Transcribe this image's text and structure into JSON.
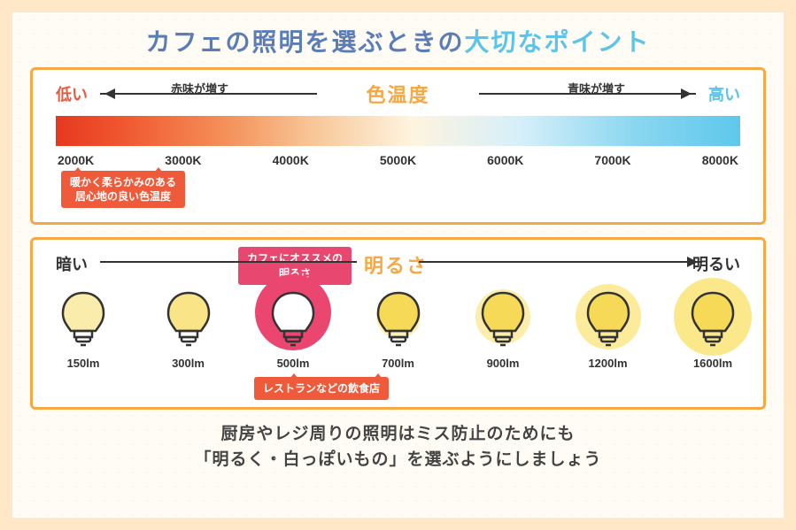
{
  "title": {
    "part1": "カフェの照明を選ぶときの",
    "part2": "大切なポイント"
  },
  "colorTemp": {
    "title": "色温度",
    "low": "低い",
    "high": "高い",
    "redLabel": "赤味が増す",
    "blueLabel": "青味が増す",
    "ticks": [
      "2000K",
      "3000K",
      "4000K",
      "5000K",
      "6000K",
      "7000K",
      "8000K"
    ],
    "gradient": [
      "#e63820",
      "#f05830",
      "#f4915a",
      "#f8c89a",
      "#fef4df",
      "#d5effa",
      "#89d6f0",
      "#5ec8ec"
    ],
    "callout1_l1": "暖かく柔らかみのある",
    "callout1_l2": "居心地の良い色温度"
  },
  "brightness": {
    "title": "明るさ",
    "dark": "暗い",
    "bright": "明るい",
    "cafeCallout_l1": "カフェにオススメの",
    "cafeCallout_l2": "明るさ",
    "restCallout": "レストランなどの飲食店",
    "bulbs": [
      {
        "label": "150lm",
        "fill": "#f6d956",
        "fillOpacity": 0.5,
        "glowSize": 0,
        "glowColor": "#fff",
        "highlight": false
      },
      {
        "label": "300lm",
        "fill": "#f6d956",
        "fillOpacity": 0.7,
        "glowSize": 0,
        "glowColor": "#fff",
        "highlight": false
      },
      {
        "label": "500lm",
        "fill": "#ffffff",
        "fillOpacity": 1,
        "glowSize": 0,
        "glowColor": "#fff",
        "highlight": true
      },
      {
        "label": "700lm",
        "fill": "#f6d956",
        "fillOpacity": 1,
        "glowSize": 50,
        "glowColor": "rgba(250,224,100,.45)",
        "highlight": false
      },
      {
        "label": "900lm",
        "fill": "#f6d956",
        "fillOpacity": 1,
        "glowSize": 62,
        "glowColor": "rgba(250,224,100,.55)",
        "highlight": false
      },
      {
        "label": "1200lm",
        "fill": "#f6d956",
        "fillOpacity": 1,
        "glowSize": 74,
        "glowColor": "rgba(250,224,100,.65)",
        "highlight": false
      },
      {
        "label": "1600lm",
        "fill": "#f6d956",
        "fillOpacity": 1,
        "glowSize": 88,
        "glowColor": "rgba(250,224,100,.75)",
        "highlight": false
      }
    ]
  },
  "footer": {
    "l1": "厨房やレジ周りの照明はミス防止のためにも",
    "l2": "「明るく・白っぽいもの」を選ぶようにしましょう"
  },
  "colors": {
    "frameBorder": "#f5a843",
    "pageBg": "#ffe7c7",
    "innerBg": "#fffbf5",
    "calloutOrange": "#ef5b3a",
    "calloutPink": "#e8476f",
    "titleBlue": "#5a7db8",
    "titleCyan": "#5bc4e8"
  }
}
